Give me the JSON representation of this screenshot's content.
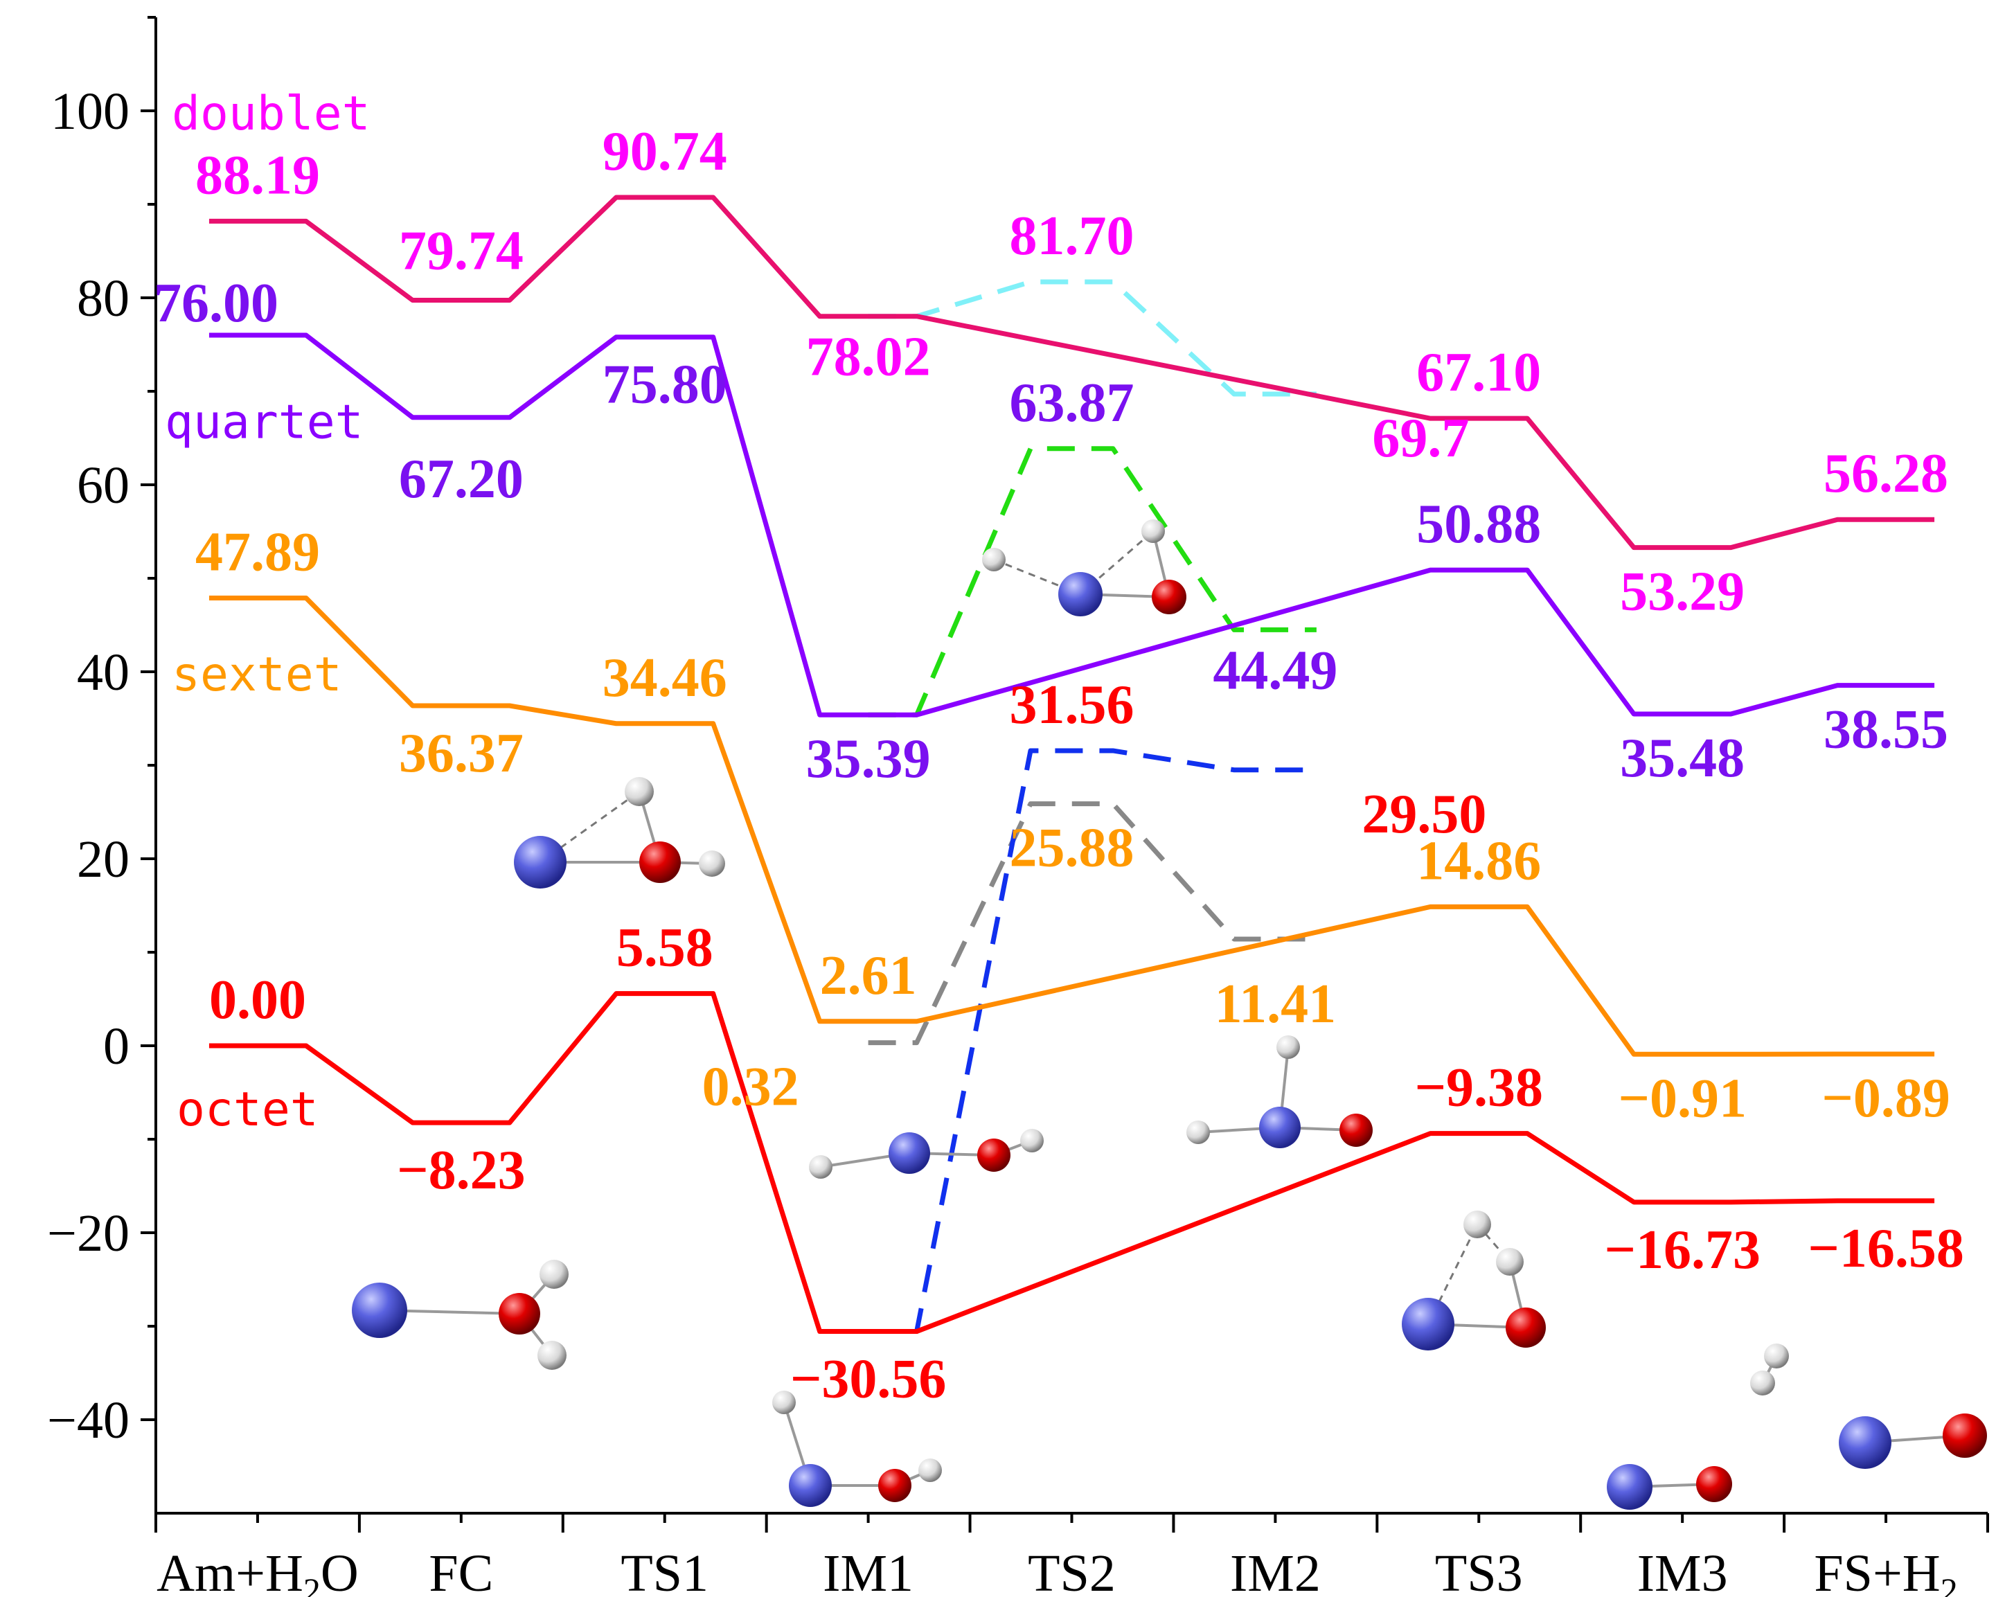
{
  "chart_data": {
    "type": "line",
    "title": "",
    "xlabel": "",
    "ylabel": "",
    "ylim": [
      -50,
      110
    ],
    "yticks": [
      -40,
      -20,
      0,
      20,
      40,
      60,
      80,
      100
    ],
    "ytick_labels": [
      "−40",
      "−20",
      "0",
      "20",
      "40",
      "60",
      "80",
      "100"
    ],
    "categories": [
      "Am+H2O",
      "FC",
      "TS1",
      "IM1",
      "TS2",
      "IM2",
      "TS3",
      "IM3",
      "FS+H2"
    ],
    "category_labels": [
      {
        "base": "Am+H",
        "sub": "2",
        "tail": "O"
      },
      {
        "base": "FC",
        "sub": "",
        "tail": ""
      },
      {
        "base": "TS1",
        "sub": "",
        "tail": ""
      },
      {
        "base": "IM1",
        "sub": "",
        "tail": ""
      },
      {
        "base": "TS2",
        "sub": "",
        "tail": ""
      },
      {
        "base": "IM2",
        "sub": "",
        "tail": ""
      },
      {
        "base": "TS3",
        "sub": "",
        "tail": ""
      },
      {
        "base": "IM3",
        "sub": "",
        "tail": ""
      },
      {
        "base": "FS+H",
        "sub": "2",
        "tail": ""
      }
    ],
    "series": [
      {
        "name": "doublet",
        "color": "#e8106e",
        "label_color": "#ff00ff",
        "dash": false,
        "points": [
          [
            "Am+H2O",
            88.19
          ],
          [
            "FC",
            79.74
          ],
          [
            "TS1",
            90.74
          ],
          [
            "IM1",
            78.02
          ],
          [
            "TS3",
            67.1
          ],
          [
            "IM3",
            53.29
          ],
          [
            "FS+H2",
            56.28
          ]
        ],
        "labels": [
          "88.19",
          "79.74",
          "90.74",
          "78.02",
          "67.10",
          "53.29",
          "56.28"
        ]
      },
      {
        "name": "quartet",
        "color": "#8a00ff",
        "label_color": "#7a10f0",
        "dash": false,
        "points": [
          [
            "Am+H2O",
            76.0
          ],
          [
            "FC",
            67.2
          ],
          [
            "TS1",
            75.8
          ],
          [
            "IM1",
            35.39
          ],
          [
            "TS3",
            50.88
          ],
          [
            "IM3",
            35.48
          ],
          [
            "FS+H2",
            38.55
          ]
        ],
        "labels": [
          "76.00",
          "67.20",
          "75.80",
          "35.39",
          "50.88",
          "35.48",
          "38.55"
        ]
      },
      {
        "name": "sextet",
        "color": "#ff8c00",
        "label_color": "#ff9900",
        "dash": false,
        "points": [
          [
            "Am+H2O",
            47.89
          ],
          [
            "FC",
            36.37
          ],
          [
            "TS1",
            34.46
          ],
          [
            "IM1",
            2.61
          ],
          [
            "TS3",
            14.86
          ],
          [
            "IM3",
            -0.91
          ],
          [
            "FS+H2",
            -0.89
          ]
        ],
        "labels": [
          "47.89",
          "36.37",
          "34.46",
          "2.61",
          "14.86",
          "−0.91",
          "−0.89"
        ]
      },
      {
        "name": "octet",
        "color": "#ff0000",
        "label_color": "#ff0000",
        "dash": false,
        "points": [
          [
            "Am+H2O",
            0.0
          ],
          [
            "FC",
            -8.23
          ],
          [
            "TS1",
            5.58
          ],
          [
            "IM1",
            -30.56
          ],
          [
            "TS3",
            -9.38
          ],
          [
            "IM3",
            -16.73
          ],
          [
            "FS+H2",
            -16.58
          ]
        ],
        "labels": [
          "0.00",
          "−8.23",
          "5.58",
          "−30.56",
          "−9.38",
          "−16.73",
          "−16.58"
        ]
      },
      {
        "name": "doublet-branch",
        "color": "#80f0f8",
        "label_color": "#ff00ff",
        "dash": true,
        "points": [
          [
            "IM1",
            78.02
          ],
          [
            "TS2",
            81.7
          ],
          [
            "IM2",
            69.7
          ]
        ],
        "labels": [
          "81.70",
          "69.7"
        ]
      },
      {
        "name": "quartet-branch",
        "color": "#22dd11",
        "label_color": "#7a10f0",
        "dash": true,
        "points": [
          [
            "IM1",
            35.39
          ],
          [
            "TS2",
            63.87
          ],
          [
            "IM2",
            44.49
          ]
        ],
        "labels": [
          "63.87",
          "44.49"
        ]
      },
      {
        "name": "sextet-branch",
        "color": "#888888",
        "label_color": "#ff9900",
        "dash": true,
        "points": [
          [
            "IM1",
            0.32
          ],
          [
            "TS2",
            25.88
          ],
          [
            "IM2",
            11.41
          ]
        ],
        "labels": [
          "0.32",
          "25.88",
          "11.41"
        ]
      },
      {
        "name": "octet-branch",
        "color": "#1030ee",
        "label_color": "#ff0000",
        "dash": true,
        "points": [
          [
            "IM1",
            -30.56
          ],
          [
            "TS2",
            31.56
          ],
          [
            "IM2",
            29.5
          ]
        ],
        "labels": [
          "31.56",
          "29.50"
        ]
      }
    ],
    "state_labels": [
      {
        "text": "doublet",
        "color": "#ff00ff"
      },
      {
        "text": "quartet",
        "color": "#8a00ff"
      },
      {
        "text": "sextet",
        "color": "#ff9900"
      },
      {
        "text": "octet",
        "color": "#ff0000"
      }
    ],
    "structures": [
      "Am–H2O",
      "TS1",
      "IM1",
      "IM1 branch",
      "TS2",
      "IM2",
      "TS3",
      "IM3",
      "FS+H2"
    ]
  }
}
